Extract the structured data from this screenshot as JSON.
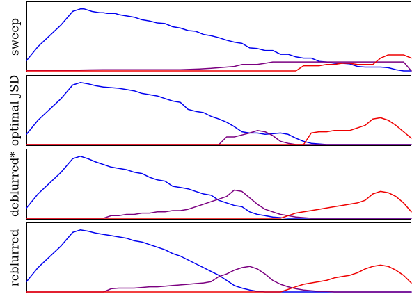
{
  "chart_data": [
    {
      "type": "line",
      "ylabel": "sweep",
      "xlim": [
        0,
        100
      ],
      "ylim": [
        0,
        1
      ],
      "series": [
        {
          "color": "#0000ee",
          "x": [
            0,
            3,
            6,
            9,
            12,
            14,
            15,
            16,
            17,
            18,
            19,
            20,
            21,
            22,
            23,
            24,
            25,
            26,
            28,
            30,
            32,
            34,
            36,
            38,
            40,
            42,
            44,
            46,
            48,
            50,
            52,
            54,
            56,
            58,
            60,
            62,
            64,
            66,
            68,
            70,
            72,
            74,
            76,
            78,
            80,
            82,
            84,
            86,
            88,
            90,
            92,
            94,
            96,
            98,
            100
          ],
          "y": [
            0.16,
            0.38,
            0.55,
            0.72,
            0.93,
            0.97,
            0.97,
            0.95,
            0.93,
            0.92,
            0.91,
            0.91,
            0.9,
            0.9,
            0.9,
            0.88,
            0.87,
            0.86,
            0.84,
            0.8,
            0.78,
            0.75,
            0.74,
            0.69,
            0.67,
            0.63,
            0.62,
            0.57,
            0.55,
            0.52,
            0.48,
            0.45,
            0.43,
            0.36,
            0.35,
            0.32,
            0.32,
            0.26,
            0.26,
            0.22,
            0.2,
            0.2,
            0.15,
            0.14,
            0.12,
            0.12,
            0.11,
            0.07,
            0.06,
            0.06,
            0.06,
            0.05,
            0.02,
            0.0,
            0.0
          ]
        },
        {
          "color": "#7b0080",
          "x": [
            0,
            10,
            20,
            30,
            40,
            45,
            48,
            50,
            52,
            54,
            56,
            58,
            60,
            62,
            64,
            66,
            68,
            70,
            72,
            74,
            76,
            78,
            80,
            82,
            84,
            86,
            88,
            90,
            92,
            94,
            96,
            98,
            100
          ],
          "y": [
            0.01,
            0.01,
            0.02,
            0.02,
            0.02,
            0.03,
            0.04,
            0.05,
            0.06,
            0.07,
            0.1,
            0.1,
            0.1,
            0.12,
            0.14,
            0.14,
            0.14,
            0.14,
            0.14,
            0.14,
            0.14,
            0.14,
            0.14,
            0.14,
            0.14,
            0.14,
            0.14,
            0.14,
            0.14,
            0.14,
            0.14,
            0.14,
            0.0
          ]
        },
        {
          "color": "#ee0000",
          "x": [
            0,
            10,
            20,
            30,
            40,
            50,
            60,
            62,
            64,
            66,
            68,
            70,
            72,
            74,
            76,
            78,
            80,
            82,
            84,
            86,
            88,
            90,
            92,
            94,
            96,
            98,
            100
          ],
          "y": [
            0.0,
            0.0,
            0.0,
            0.0,
            0.0,
            0.0,
            0.0,
            0.0,
            0.0,
            0.0,
            0.0,
            0.0,
            0.08,
            0.08,
            0.08,
            0.1,
            0.1,
            0.12,
            0.12,
            0.1,
            0.1,
            0.1,
            0.2,
            0.25,
            0.25,
            0.25,
            0.2
          ]
        }
      ]
    },
    {
      "type": "line",
      "ylabel": "optimal JSD",
      "xlim": [
        0,
        100
      ],
      "ylim": [
        0,
        1
      ],
      "series": [
        {
          "color": "#0000ee",
          "x": [
            0,
            3,
            6,
            9,
            12,
            14,
            16,
            18,
            20,
            22,
            24,
            26,
            28,
            30,
            32,
            34,
            36,
            38,
            40,
            42,
            44,
            46,
            48,
            50,
            52,
            54,
            56,
            58,
            60,
            62,
            64,
            66,
            68,
            70,
            72,
            74,
            76,
            78,
            80,
            82,
            84,
            86,
            88,
            90,
            92,
            94,
            96,
            98,
            100
          ],
          "y": [
            0.16,
            0.38,
            0.55,
            0.72,
            0.93,
            0.97,
            0.95,
            0.92,
            0.9,
            0.89,
            0.88,
            0.86,
            0.84,
            0.8,
            0.78,
            0.76,
            0.72,
            0.68,
            0.66,
            0.55,
            0.52,
            0.5,
            0.44,
            0.4,
            0.35,
            0.28,
            0.2,
            0.18,
            0.18,
            0.16,
            0.17,
            0.18,
            0.16,
            0.1,
            0.05,
            0.02,
            0.01,
            0.0,
            0.0,
            0.0,
            0.0,
            0.0,
            0.0,
            0.0,
            0.0,
            0.0,
            0.0,
            0.0,
            0.0
          ]
        },
        {
          "color": "#7b0080",
          "x": [
            0,
            10,
            20,
            30,
            36,
            38,
            40,
            42,
            44,
            46,
            48,
            50,
            52,
            54,
            56,
            58,
            60,
            62,
            64,
            66,
            68,
            70,
            72,
            74,
            76,
            78,
            80,
            82,
            84,
            86,
            88,
            90,
            92,
            94,
            96,
            98,
            100
          ],
          "y": [
            0.0,
            0.0,
            0.0,
            0.0,
            0.0,
            0.0,
            0.0,
            0.0,
            0.0,
            0.0,
            0.0,
            0.0,
            0.12,
            0.12,
            0.15,
            0.18,
            0.22,
            0.2,
            0.14,
            0.05,
            0.02,
            0.0,
            0.0,
            0.0,
            0.0,
            0.0,
            0.0,
            0.0,
            0.0,
            0.0,
            0.0,
            0.0,
            0.0,
            0.0,
            0.0,
            0.0,
            0.0
          ]
        },
        {
          "color": "#ee0000",
          "x": [
            0,
            10,
            20,
            30,
            40,
            50,
            60,
            62,
            64,
            66,
            68,
            70,
            72,
            74,
            76,
            78,
            80,
            82,
            84,
            86,
            88,
            90,
            92,
            94,
            96,
            98,
            100
          ],
          "y": [
            0.0,
            0.0,
            0.0,
            0.0,
            0.0,
            0.0,
            0.0,
            0.0,
            0.0,
            0.0,
            0.0,
            0.0,
            0.0,
            0.18,
            0.2,
            0.2,
            0.22,
            0.22,
            0.22,
            0.26,
            0.3,
            0.4,
            0.42,
            0.38,
            0.3,
            0.2,
            0.1
          ]
        }
      ]
    },
    {
      "type": "line",
      "ylabel": "deblurred*",
      "xlim": [
        0,
        100
      ],
      "ylim": [
        0,
        1
      ],
      "series": [
        {
          "color": "#0000ee",
          "x": [
            0,
            3,
            6,
            9,
            12,
            14,
            16,
            18,
            20,
            22,
            24,
            26,
            28,
            30,
            32,
            34,
            36,
            38,
            40,
            42,
            44,
            46,
            48,
            50,
            52,
            54,
            56,
            58,
            60,
            62,
            64,
            66,
            68,
            70,
            72,
            74,
            76,
            78,
            80,
            82,
            84,
            86,
            88,
            90,
            92,
            94,
            96,
            98,
            100
          ],
          "y": [
            0.16,
            0.38,
            0.55,
            0.72,
            0.93,
            0.97,
            0.93,
            0.88,
            0.84,
            0.8,
            0.78,
            0.76,
            0.72,
            0.7,
            0.64,
            0.6,
            0.58,
            0.5,
            0.48,
            0.46,
            0.42,
            0.38,
            0.36,
            0.28,
            0.24,
            0.2,
            0.18,
            0.1,
            0.06,
            0.04,
            0.02,
            0.01,
            0.0,
            0.0,
            0.0,
            0.0,
            0.0,
            0.0,
            0.0,
            0.0,
            0.0,
            0.0,
            0.0,
            0.0,
            0.0,
            0.0,
            0.0,
            0.0,
            0.0
          ]
        },
        {
          "color": "#7b0080",
          "x": [
            0,
            10,
            20,
            22,
            24,
            26,
            28,
            30,
            32,
            34,
            36,
            38,
            40,
            42,
            44,
            46,
            48,
            50,
            52,
            54,
            56,
            58,
            60,
            62,
            64,
            66,
            68,
            70,
            72,
            74,
            76,
            78,
            80,
            82,
            84,
            86,
            88,
            90,
            92,
            94,
            96,
            98,
            100
          ],
          "y": [
            0.0,
            0.0,
            0.0,
            0.04,
            0.04,
            0.06,
            0.06,
            0.08,
            0.08,
            0.1,
            0.1,
            0.12,
            0.12,
            0.14,
            0.18,
            0.22,
            0.26,
            0.3,
            0.34,
            0.44,
            0.42,
            0.32,
            0.22,
            0.14,
            0.1,
            0.06,
            0.04,
            0.02,
            0.01,
            0.0,
            0.0,
            0.0,
            0.0,
            0.0,
            0.0,
            0.0,
            0.0,
            0.0,
            0.0,
            0.0,
            0.0,
            0.0,
            0.0
          ]
        },
        {
          "color": "#ee0000",
          "x": [
            0,
            10,
            20,
            30,
            40,
            50,
            60,
            62,
            64,
            66,
            68,
            70,
            72,
            74,
            76,
            78,
            80,
            82,
            84,
            86,
            88,
            90,
            92,
            94,
            96,
            98,
            100
          ],
          "y": [
            0.0,
            0.0,
            0.0,
            0.0,
            0.0,
            0.0,
            0.0,
            0.0,
            0.0,
            0.0,
            0.04,
            0.08,
            0.1,
            0.12,
            0.14,
            0.16,
            0.18,
            0.2,
            0.22,
            0.24,
            0.28,
            0.38,
            0.42,
            0.4,
            0.34,
            0.24,
            0.1
          ]
        }
      ]
    },
    {
      "type": "line",
      "ylabel": "reblurred",
      "xlim": [
        0,
        100
      ],
      "ylim": [
        0,
        1
      ],
      "series": [
        {
          "color": "#0000ee",
          "x": [
            0,
            3,
            6,
            9,
            12,
            14,
            16,
            18,
            20,
            22,
            24,
            26,
            28,
            30,
            32,
            34,
            36,
            38,
            40,
            42,
            44,
            46,
            48,
            50,
            52,
            54,
            56,
            58,
            60,
            62,
            64,
            66,
            68,
            70,
            72,
            74,
            76,
            78,
            80,
            82,
            84,
            86,
            88,
            90,
            92,
            94,
            96,
            98,
            100
          ],
          "y": [
            0.16,
            0.38,
            0.55,
            0.72,
            0.93,
            0.97,
            0.95,
            0.92,
            0.9,
            0.88,
            0.86,
            0.84,
            0.8,
            0.78,
            0.74,
            0.7,
            0.66,
            0.6,
            0.56,
            0.5,
            0.44,
            0.38,
            0.32,
            0.26,
            0.18,
            0.1,
            0.06,
            0.03,
            0.01,
            0.0,
            0.0,
            0.0,
            0.0,
            0.0,
            0.0,
            0.0,
            0.0,
            0.0,
            0.0,
            0.0,
            0.0,
            0.0,
            0.0,
            0.0,
            0.0,
            0.0,
            0.0,
            0.0,
            0.0
          ]
        },
        {
          "color": "#7b0080",
          "x": [
            0,
            10,
            20,
            22,
            24,
            26,
            28,
            30,
            32,
            34,
            36,
            38,
            40,
            42,
            44,
            46,
            48,
            50,
            52,
            54,
            56,
            58,
            60,
            62,
            64,
            66,
            68,
            70,
            72,
            74,
            76,
            78,
            80,
            82,
            84,
            86,
            88,
            90,
            92,
            94,
            96,
            98,
            100
          ],
          "y": [
            0.0,
            0.0,
            0.0,
            0.05,
            0.06,
            0.06,
            0.06,
            0.07,
            0.08,
            0.08,
            0.09,
            0.1,
            0.11,
            0.12,
            0.13,
            0.14,
            0.16,
            0.24,
            0.28,
            0.34,
            0.38,
            0.4,
            0.36,
            0.28,
            0.18,
            0.12,
            0.08,
            0.05,
            0.03,
            0.02,
            0.01,
            0.01,
            0.0,
            0.0,
            0.0,
            0.0,
            0.0,
            0.0,
            0.0,
            0.0,
            0.0,
            0.0,
            0.0
          ]
        },
        {
          "color": "#ee0000",
          "x": [
            0,
            10,
            20,
            30,
            40,
            50,
            60,
            62,
            64,
            66,
            68,
            70,
            72,
            74,
            76,
            78,
            80,
            82,
            84,
            86,
            88,
            90,
            92,
            94,
            96,
            98,
            100
          ],
          "y": [
            0.0,
            0.0,
            0.0,
            0.0,
            0.0,
            0.0,
            0.0,
            0.0,
            0.0,
            0.0,
            0.04,
            0.08,
            0.12,
            0.14,
            0.16,
            0.18,
            0.22,
            0.24,
            0.26,
            0.3,
            0.36,
            0.4,
            0.42,
            0.4,
            0.34,
            0.26,
            0.14
          ]
        }
      ]
    }
  ]
}
